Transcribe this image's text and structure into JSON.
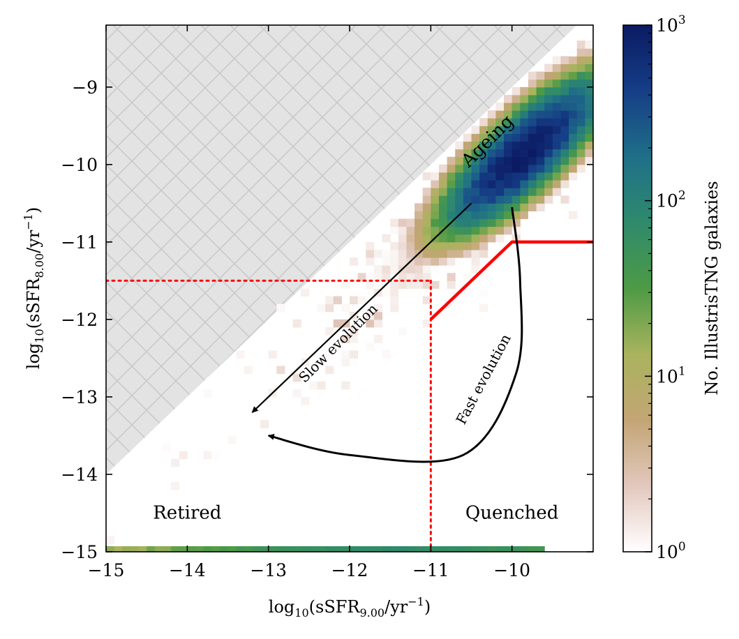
{
  "chart_data": {
    "type": "heatmap",
    "title": "",
    "xlabel": "log10(sSFR9.00/yr−1)",
    "ylabel": "log10(sSFR8.00/yr−1)",
    "xlim": [
      -15,
      -9
    ],
    "ylim": [
      -15,
      -8.2
    ],
    "x_ticks": [
      -15,
      -14,
      -13,
      -12,
      -11,
      -10
    ],
    "y_ticks": [
      -15,
      -14,
      -13,
      -12,
      -11,
      -10,
      -9
    ],
    "x_tick_labels": [
      "−15",
      "−14",
      "−13",
      "−12",
      "−11",
      "−10"
    ],
    "y_tick_labels": [
      "−15",
      "−14",
      "−13",
      "−12",
      "−11",
      "−10",
      "−9"
    ],
    "xlabel_parts": {
      "main": "log",
      "sub": "10",
      "paren": "(sSFR",
      "sub2": "9.00",
      "tail": "/yr",
      "sup": "−1",
      "end": ")"
    },
    "ylabel_parts": {
      "main": "log",
      "sub": "10",
      "paren": "(sSFR",
      "sub2": "8.00",
      "tail": "/yr",
      "sup": "−1",
      "end": ")"
    },
    "colorbar": {
      "label": "No. IllustrisTNG galaxies",
      "scale": "log",
      "range": [
        1,
        1000
      ],
      "ticks": [
        1,
        10,
        100,
        1000
      ],
      "tick_labels": [
        {
          "base": "10",
          "exp": "0"
        },
        {
          "base": "10",
          "exp": "1"
        },
        {
          "base": "10",
          "exp": "2"
        },
        {
          "base": "10",
          "exp": "3"
        }
      ],
      "colormap": "gist_earth_r",
      "colors": [
        "#ffffff",
        "#e2c8be",
        "#c3a575",
        "#aab35e",
        "#4e9a45",
        "#2f8a6c",
        "#1f6f88",
        "#163e86",
        "#0b1b63"
      ]
    },
    "density_peak": {
      "x": -9.85,
      "y": -9.85,
      "count": 1000
    },
    "density_sigma_along": 0.55,
    "density_sigma_perp": 0.18,
    "bottom_floor_y": -15,
    "shaded_region": {
      "description": "unphysical region y > x + 1",
      "y_offset": 1,
      "color": "#e3e3e3"
    },
    "boundaries": [
      {
        "name": "quenched-boundary",
        "style": "solid",
        "color": "#ff0000",
        "points": [
          [
            -11,
            -12
          ],
          [
            -10,
            -11
          ],
          [
            -9,
            -11
          ]
        ]
      },
      {
        "name": "retired-boundary-horizontal",
        "style": "dotted",
        "color": "#ff0000",
        "points": [
          [
            -15,
            -11.5
          ],
          [
            -11,
            -11.5
          ]
        ]
      },
      {
        "name": "retired-boundary-vertical",
        "style": "dotted",
        "color": "#ff0000",
        "points": [
          [
            -11,
            -11.5
          ],
          [
            -11,
            -15
          ]
        ]
      }
    ],
    "arrows": [
      {
        "name": "slow-evolution-arrow",
        "points": [
          [
            -10.5,
            -10.5
          ],
          [
            -13.2,
            -13.2
          ]
        ]
      },
      {
        "name": "fast-evolution-arrow",
        "points": [
          [
            -10,
            -10.55
          ],
          [
            -9.9,
            -11.5
          ],
          [
            -9.95,
            -12.7
          ],
          [
            -10.6,
            -13.75
          ],
          [
            -12.0,
            -13.75
          ],
          [
            -13.0,
            -13.5
          ]
        ]
      }
    ],
    "annotations": [
      {
        "name": "label-ageing",
        "text": "Ageing",
        "x": -10.25,
        "y": -9.75,
        "rotation": -45,
        "size": 26
      },
      {
        "name": "label-slow-evolution",
        "text": "Slow evolution",
        "x": -12.1,
        "y": -12.35,
        "rotation": -45,
        "size": 20
      },
      {
        "name": "label-fast-evolution",
        "text": "Fast evolution",
        "x": -10.3,
        "y": -12.8,
        "rotation": -62,
        "size": 20
      },
      {
        "name": "label-retired",
        "text": "Retired",
        "x": -14.0,
        "y": -14.57,
        "rotation": 0,
        "size": 26
      },
      {
        "name": "label-quenched",
        "text": "Quenched",
        "x": -10.0,
        "y": -14.57,
        "rotation": 0,
        "size": 26
      }
    ]
  }
}
